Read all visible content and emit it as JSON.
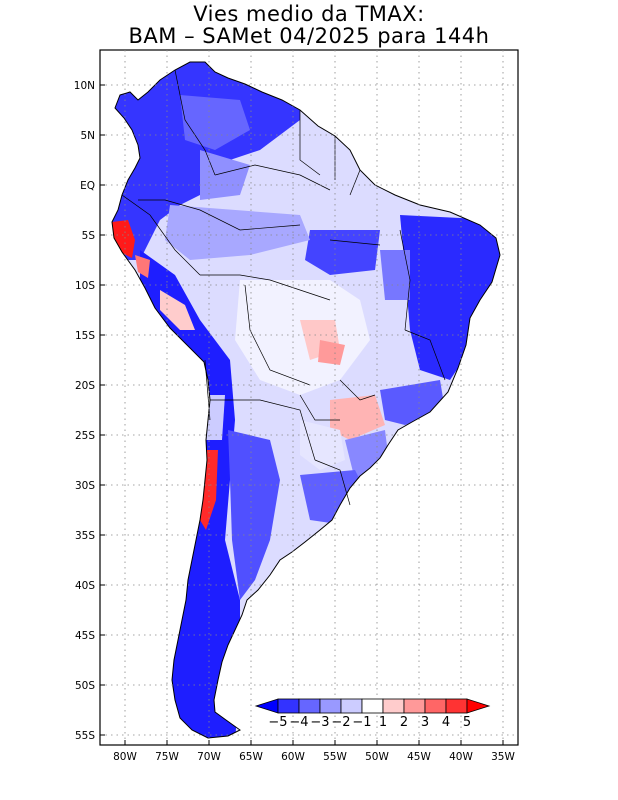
{
  "title": {
    "line1": "Vies medio da TMAX:",
    "line2": "BAM – SAMet 04/2025  para 144h"
  },
  "map": {
    "region": "South America",
    "variable": "TMAX mean bias",
    "lat_ticks": [
      "10N",
      "5N",
      "EQ",
      "5S",
      "10S",
      "15S",
      "20S",
      "25S",
      "30S",
      "35S",
      "40S",
      "45S",
      "50S",
      "55S"
    ],
    "lon_ticks": [
      "80W",
      "75W",
      "70W",
      "65W",
      "60W",
      "55W",
      "50W",
      "45W",
      "40W",
      "35W"
    ],
    "lat_range": [
      -56,
      13
    ],
    "lon_range": [
      -83,
      -34
    ]
  },
  "colorbar": {
    "labels": [
      "−5",
      "−4",
      "−3",
      "−2",
      "−1",
      "1",
      "2",
      "3",
      "4",
      "5"
    ],
    "colors": [
      "#0000ff",
      "#3333ff",
      "#6666ff",
      "#9999ff",
      "#ccccff",
      "#ffffff",
      "#ffcccc",
      "#ff9999",
      "#ff6666",
      "#ff3333",
      "#ff0000"
    ]
  }
}
